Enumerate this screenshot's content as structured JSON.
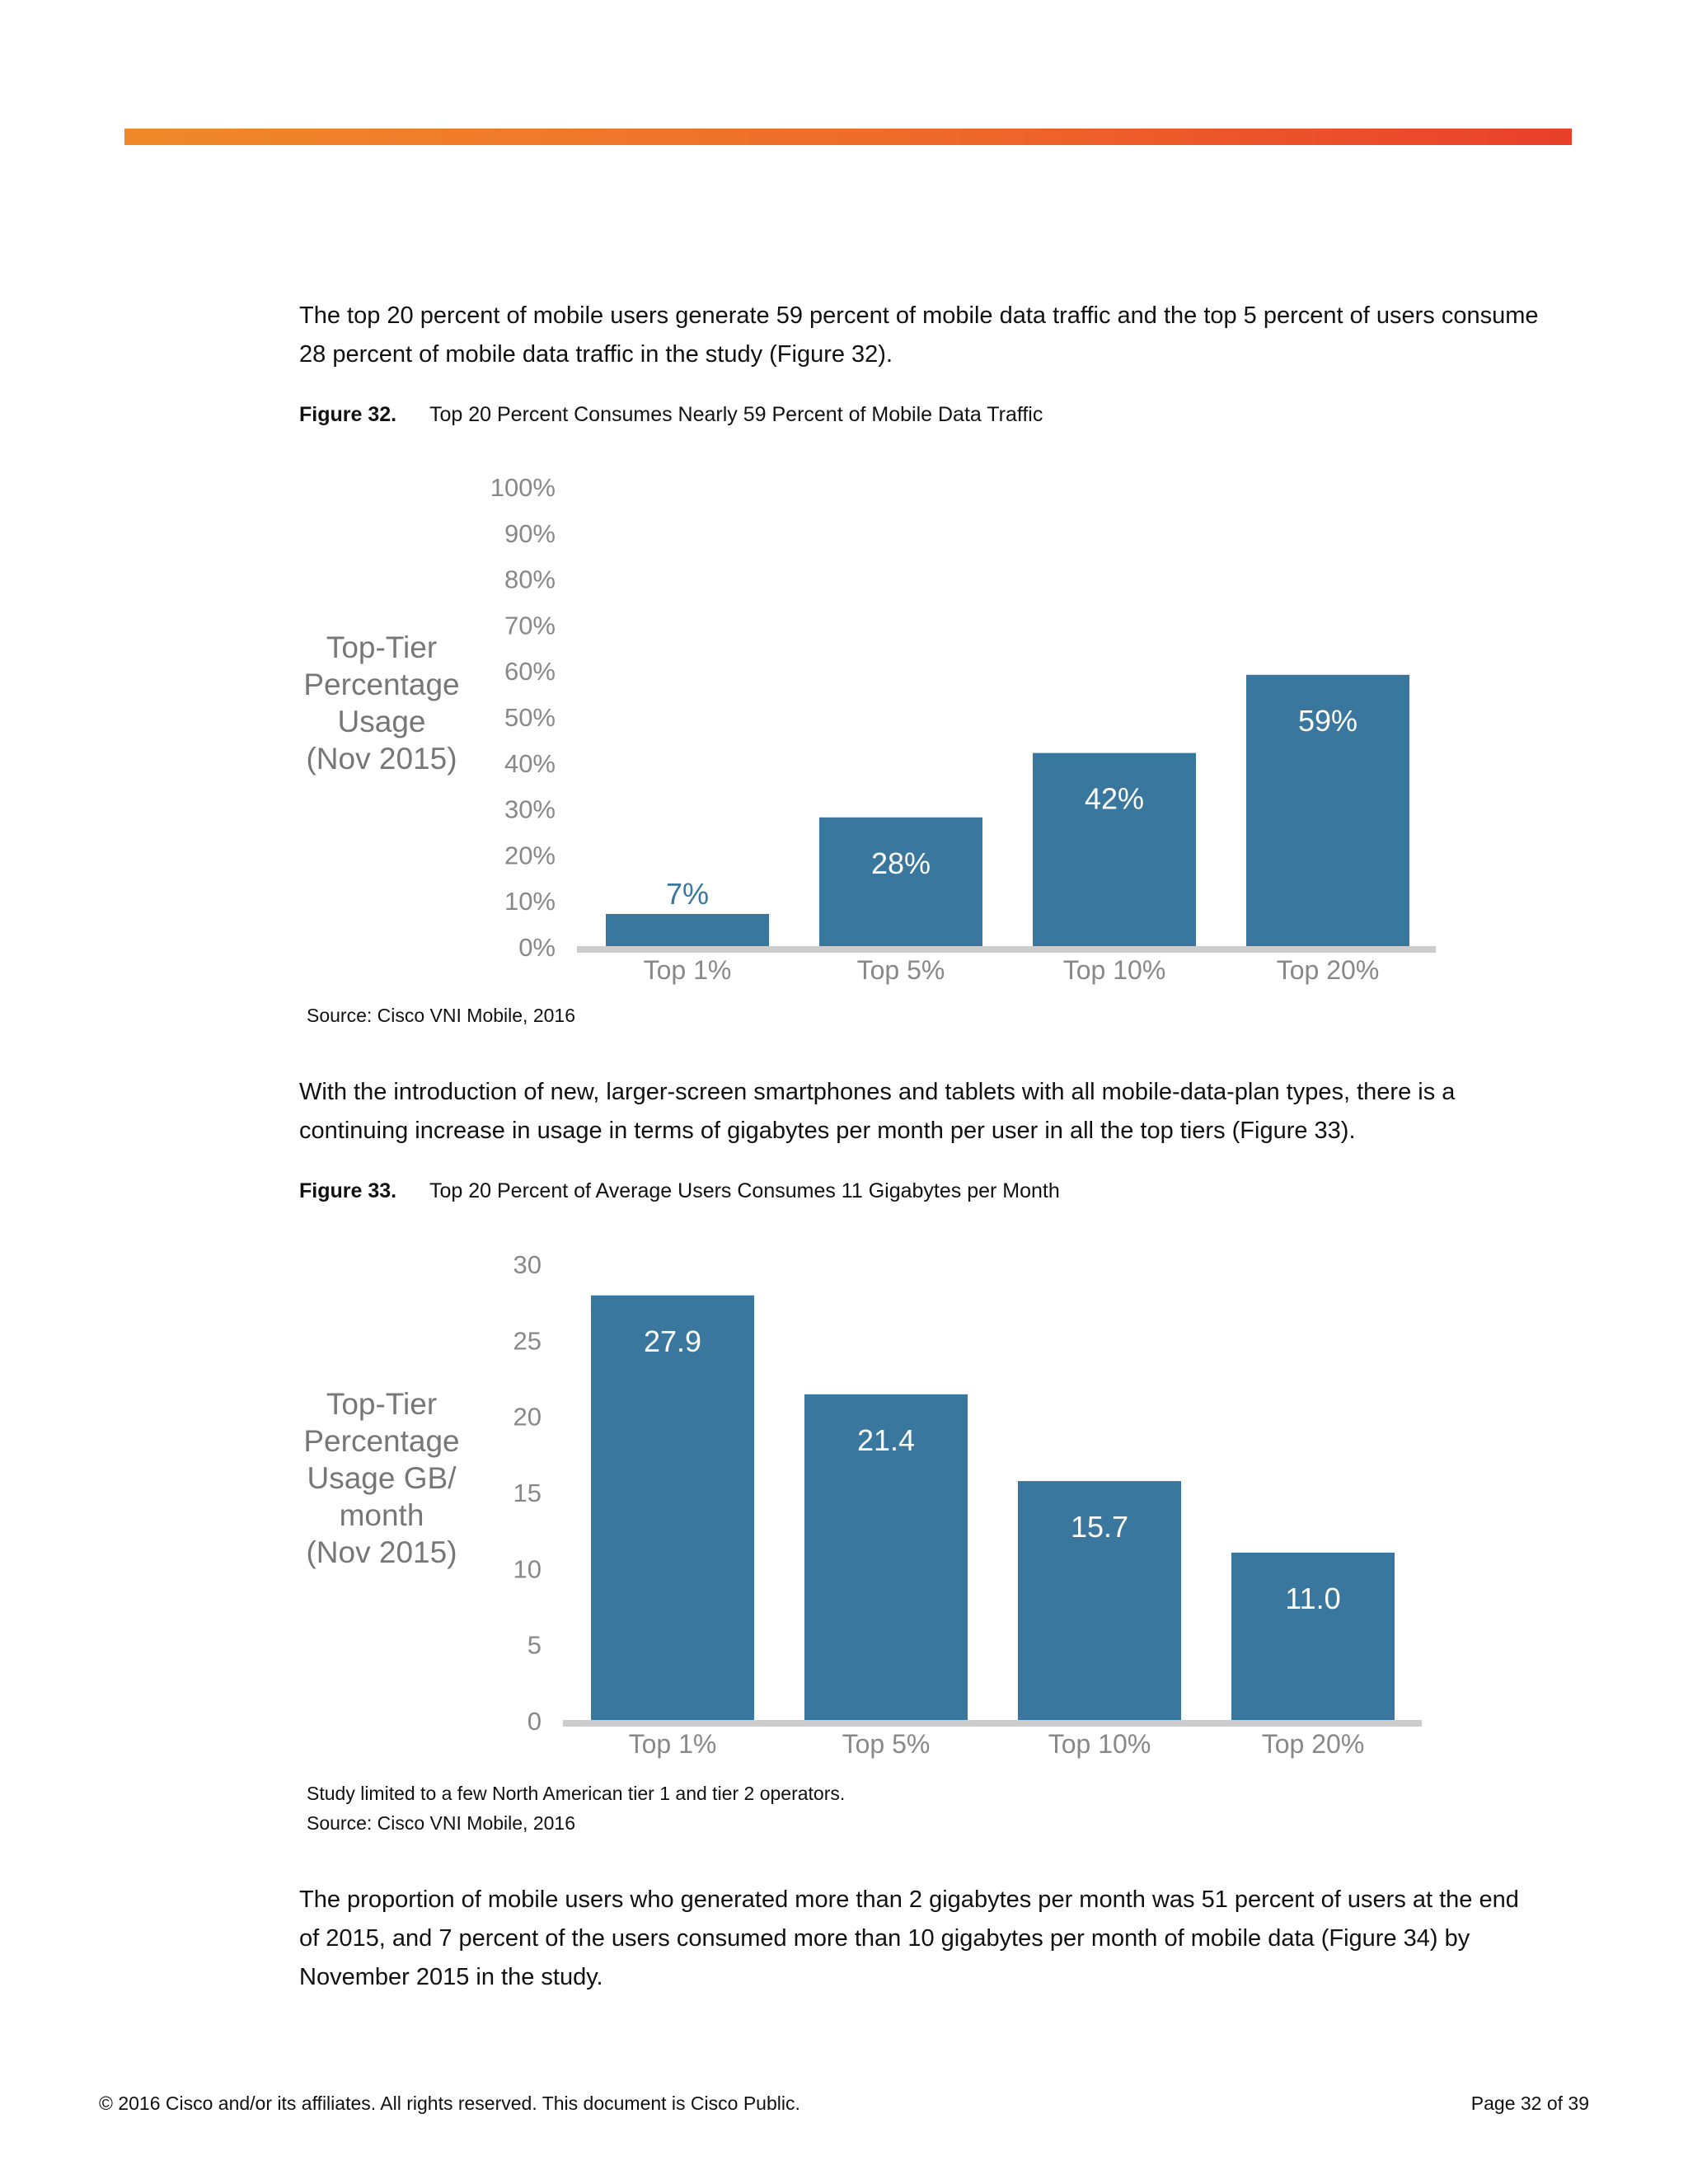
{
  "paragraphs": {
    "p1": "The top 20 percent of mobile users generate 59 percent of mobile data traffic and the top 5 percent of users consume 28 percent of mobile data traffic in the study (Figure 32).",
    "p2": "With the introduction of new, larger-screen smartphones and tablets with all mobile-data-plan types, there is a continuing increase in usage in terms of gigabytes per month per user in all the top tiers (Figure 33).",
    "p3": "The proportion of mobile users who generated more than 2 gigabytes per month was 51 percent of users at the end of 2015, and 7 percent of the users consumed more than 10 gigabytes per month of mobile data (Figure 34) by November 2015 in the study."
  },
  "figure32": {
    "number": "Figure 32.",
    "title": "Top 20 Percent Consumes Nearly 59 Percent of Mobile Data Traffic",
    "source": "Source: Cisco VNI Mobile, 2016"
  },
  "figure33": {
    "number": "Figure 33.",
    "title": "Top 20 Percent of Average Users Consumes 11 Gigabytes per Month",
    "note": "Study limited to a few North American tier 1 and tier 2 operators.",
    "source": "Source: Cisco VNI Mobile, 2016"
  },
  "footer": {
    "copyright": "© 2016 Cisco and/or its affiliates. All rights reserved. This document is Cisco Public.",
    "page": "Page 32 of 39"
  },
  "colors": {
    "bar": "#3a779e",
    "axis": "#cccccc",
    "tick": "#888888",
    "ylabel": "#777777",
    "accent": "#f0892a"
  },
  "chart_data": [
    {
      "type": "bar",
      "categories": [
        "Top 1%",
        "Top 5%",
        "Top 10%",
        "Top 20%"
      ],
      "values": [
        7,
        28,
        42,
        59
      ],
      "data_labels": [
        "7%",
        "28%",
        "42%",
        "59%"
      ],
      "ylabel": [
        "Top-Tier",
        "Percentage",
        "Usage",
        "(Nov 2015)"
      ],
      "ylim": [
        0,
        100
      ],
      "yticks": [
        "0%",
        "10%",
        "20%",
        "30%",
        "40%",
        "50%",
        "60%",
        "70%",
        "80%",
        "90%",
        "100%"
      ],
      "grid": false
    },
    {
      "type": "bar",
      "categories": [
        "Top 1%",
        "Top 5%",
        "Top 10%",
        "Top 20%"
      ],
      "values": [
        27.9,
        21.4,
        15.7,
        11.0
      ],
      "data_labels": [
        "27.9",
        "21.4",
        "15.7",
        "11.0"
      ],
      "ylabel": [
        "Top-Tier",
        "Percentage",
        "Usage GB/",
        "month",
        "(Nov 2015)"
      ],
      "ylim": [
        0,
        30
      ],
      "yticks": [
        "0",
        "5",
        "10",
        "15",
        "20",
        "25",
        "30"
      ],
      "grid": false
    }
  ]
}
